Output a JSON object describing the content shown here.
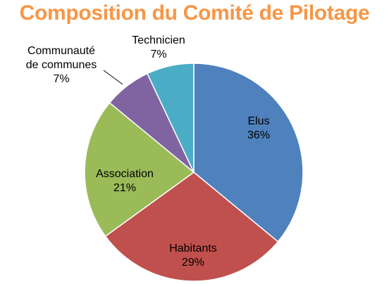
{
  "chart_data": {
    "type": "pie",
    "title": "Composition du Comité de Pilotage",
    "title_color": "#f79646",
    "slices": [
      {
        "label": "Elus",
        "value": 36,
        "value_label": "36%",
        "color": "#4f81bd"
      },
      {
        "label": "Habitants",
        "value": 29,
        "value_label": "29%",
        "color": "#c0504d"
      },
      {
        "label": "Association",
        "value": 21,
        "value_label": "21%",
        "color": "#9bbb59"
      },
      {
        "label": "Communauté de communes",
        "value": 7,
        "value_label": "7%",
        "color": "#8064a2"
      },
      {
        "label": "Technicien",
        "value": 7,
        "value_label": "7%",
        "color": "#4bacc6"
      }
    ],
    "start_angle": "12 o'clock",
    "direction": "clockwise",
    "legend": "none",
    "labels": "on slices, leader line for Communauté de communes"
  }
}
